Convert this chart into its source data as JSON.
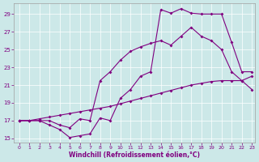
{
  "xlabel": "Windchill (Refroidissement éolien,°C)",
  "background_color": "#cce8e8",
  "line_color": "#800080",
  "grid_color": "#ffffff",
  "xlim": [
    -0.5,
    23.3
  ],
  "ylim": [
    14.5,
    30.2
  ],
  "yticks": [
    15,
    17,
    19,
    21,
    23,
    25,
    27,
    29
  ],
  "xticks": [
    0,
    1,
    2,
    3,
    4,
    5,
    6,
    7,
    8,
    9,
    10,
    11,
    12,
    13,
    14,
    15,
    16,
    17,
    18,
    19,
    20,
    21,
    22,
    23
  ],
  "line1_x": [
    0,
    1,
    2,
    3,
    4,
    5,
    6,
    7,
    8,
    9,
    10,
    11,
    12,
    13,
    14,
    15,
    16,
    17,
    18,
    19,
    20,
    21,
    22,
    23
  ],
  "line1_y": [
    17.0,
    17.0,
    17.2,
    17.4,
    17.6,
    17.8,
    18.0,
    18.2,
    18.4,
    18.6,
    18.9,
    19.2,
    19.5,
    19.8,
    20.1,
    20.4,
    20.7,
    21.0,
    21.2,
    21.4,
    21.5,
    21.5,
    21.5,
    20.5
  ],
  "line2_x": [
    0,
    1,
    2,
    3,
    4,
    5,
    6,
    7,
    8,
    9,
    10,
    11,
    12,
    13,
    14,
    15,
    16,
    17,
    18,
    19,
    20,
    21,
    22,
    23
  ],
  "line2_y": [
    17.0,
    17.0,
    17.0,
    17.0,
    16.5,
    16.2,
    17.2,
    17.0,
    21.5,
    22.5,
    23.8,
    24.8,
    25.3,
    25.7,
    26.0,
    25.5,
    26.5,
    27.5,
    26.5,
    26.0,
    25.0,
    22.5,
    21.5,
    22.0
  ],
  "line3_x": [
    0,
    1,
    2,
    3,
    4,
    5,
    6,
    7,
    8,
    9,
    10,
    11,
    12,
    13,
    14,
    15,
    16,
    17,
    18,
    19,
    20,
    21,
    22,
    23
  ],
  "line3_y": [
    17.0,
    17.0,
    17.0,
    16.5,
    16.0,
    15.1,
    15.3,
    15.5,
    17.3,
    17.0,
    19.5,
    20.5,
    22.0,
    22.5,
    29.5,
    29.1,
    29.6,
    29.1,
    29.0,
    29.0,
    29.0,
    25.8,
    22.5,
    22.5
  ]
}
